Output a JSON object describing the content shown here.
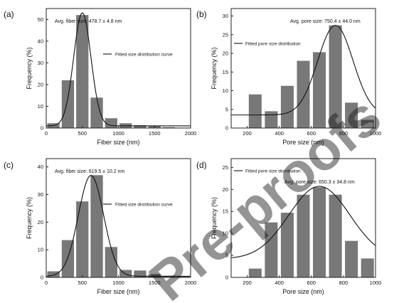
{
  "watermark": "Pre-proofs",
  "chart_data": [
    {
      "id": "a",
      "panel_label": "(a)",
      "type": "bar",
      "annotation": "Avg. fiber size: 478.7 ± 4.8 nm",
      "legend_label": "Fitted size distribution curve",
      "legend_position": "top-right",
      "xlabel": "Fiber size (nm)",
      "ylabel": "Frequency (%)",
      "xlim": [
        0,
        2000
      ],
      "ylim": [
        0,
        55
      ],
      "xticks": [
        0,
        500,
        1000,
        1500,
        2000
      ],
      "yticks": [
        0,
        10,
        20,
        30,
        40,
        50
      ],
      "bar_width": 170,
      "x": [
        100,
        300,
        500,
        700,
        900,
        1100,
        1300,
        1500,
        1700,
        1900
      ],
      "values": [
        2.2,
        22,
        52,
        14,
        4.5,
        2.2,
        1.3,
        0.8,
        0.4,
        0.2
      ],
      "fit": {
        "type": "gaussian",
        "center": 500,
        "sigma": 120,
        "amplitude": 52,
        "baseline": 1.0
      }
    },
    {
      "id": "b",
      "panel_label": "(b)",
      "type": "bar",
      "annotation": "Avg. pore size: 750.4 ± 44.0 nm",
      "legend_label": "Fitted pore size distribution",
      "legend_position": "top-left",
      "xlabel": "Pore size (nm)",
      "ylabel": "Frequency (%)",
      "xlim": [
        100,
        1000
      ],
      "ylim": [
        0,
        32
      ],
      "xticks": [
        200,
        400,
        600,
        800,
        1000
      ],
      "yticks": [
        0,
        5,
        10,
        15,
        20,
        25,
        30
      ],
      "bar_width": 80,
      "x": [
        250,
        350,
        450,
        550,
        650,
        750,
        850,
        950
      ],
      "values": [
        9,
        4.5,
        11.3,
        18,
        20.3,
        27.5,
        6.8,
        2.2
      ],
      "fit": {
        "type": "gaussian",
        "center": 750,
        "sigma": 110,
        "amplitude": 24,
        "baseline": 3.5
      }
    },
    {
      "id": "c",
      "panel_label": "(c)",
      "type": "bar",
      "annotation": "Avg. fiber size: 619.5 ± 10.2 nm",
      "legend_label": "Fitted size distribution curve",
      "legend_position": "top-right",
      "xlabel": "Fiber size (nm)",
      "ylabel": "Frequency (%)",
      "xlim": [
        0,
        2000
      ],
      "ylim": [
        0,
        43
      ],
      "xticks": [
        0,
        500,
        1000,
        1500,
        2000
      ],
      "yticks": [
        0,
        10,
        20,
        30,
        40
      ],
      "bar_width": 170,
      "x": [
        100,
        300,
        500,
        700,
        900,
        1100,
        1300,
        1500,
        1700,
        1900
      ],
      "values": [
        2.2,
        13.5,
        27.5,
        37,
        11,
        2.7,
        2.5,
        1.2,
        0.6,
        0.3
      ],
      "fit": {
        "type": "gaussian",
        "center": 620,
        "sigma": 175,
        "amplitude": 36.5,
        "baseline": 0.4
      }
    },
    {
      "id": "d",
      "panel_label": "(d)",
      "type": "bar",
      "annotation": "Avg. pore size: 650.3 ± 34.8 nm",
      "legend_label": "Fitted pore size distribution",
      "legend_position": "top-left",
      "xlabel": "Pore size (nm)",
      "ylabel": "Frequency (%)",
      "xlim": [
        100,
        1000
      ],
      "ylim": [
        0,
        27
      ],
      "xticks": [
        200,
        400,
        600,
        800,
        1000
      ],
      "yticks": [
        0,
        5,
        10,
        15,
        20,
        25
      ],
      "bar_width": 80,
      "x": [
        250,
        350,
        450,
        550,
        650,
        750,
        850,
        950
      ],
      "values": [
        2,
        12.5,
        14.7,
        18.8,
        20.5,
        18.8,
        8.3,
        4.3
      ],
      "fit": {
        "type": "gaussian",
        "center": 650,
        "sigma": 190,
        "amplitude": 16.5,
        "baseline": 4.2
      }
    }
  ]
}
